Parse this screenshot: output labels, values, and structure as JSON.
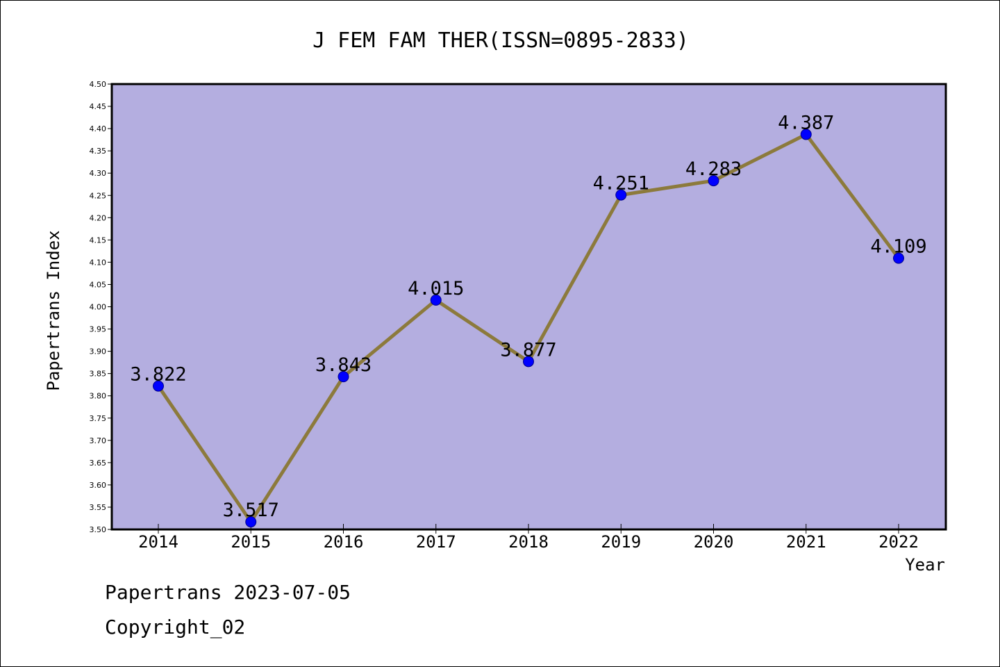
{
  "chart_data": {
    "type": "line",
    "title": "J FEM FAM THER(ISSN=0895-2833)",
    "xlabel": "Year",
    "ylabel": "Papertrans Index",
    "categories": [
      "2014",
      "2015",
      "2016",
      "2017",
      "2018",
      "2019",
      "2020",
      "2021",
      "2022"
    ],
    "values": [
      3.822,
      3.517,
      3.843,
      4.015,
      3.877,
      4.251,
      4.283,
      4.387,
      4.109
    ],
    "data_labels": [
      "3.822",
      "3.517",
      "3.843",
      "4.015",
      "3.877",
      "4.251",
      "4.283",
      "4.387",
      "4.109"
    ],
    "ylim": [
      3.5,
      4.5
    ],
    "yticks": [
      "3.50",
      "3.55",
      "3.60",
      "3.65",
      "3.70",
      "3.75",
      "3.80",
      "3.85",
      "3.90",
      "3.95",
      "4.00",
      "4.05",
      "4.10",
      "4.15",
      "4.20",
      "4.25",
      "4.30",
      "4.35",
      "4.40",
      "4.45",
      "4.50"
    ],
    "grid": false,
    "legend": "none",
    "colors": {
      "plot_background": "#b4aee0",
      "line": "#8c7a3c",
      "marker": "#0000ff",
      "marker_edge": "#00008b",
      "axis": "#000000"
    }
  },
  "footer": {
    "date_line": "Papertrans 2023-07-05",
    "copyright_line": "Copyright_02"
  }
}
